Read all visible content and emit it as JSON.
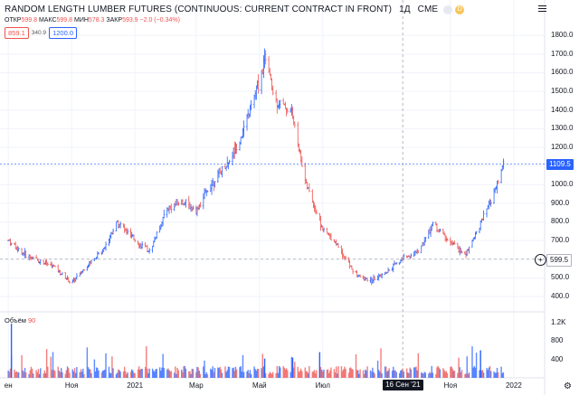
{
  "legend": {
    "title": "RANDOM LENGTH LUMBER FUTURES (CONTINUOUS: CURRENT CONTRACT IN FRONT)",
    "interval": "1Д",
    "exchange": "CME",
    "badge": "D"
  },
  "ohlc": {
    "open_label": "ОТКР",
    "open": "599.8",
    "high_label": "МАКС",
    "high": "599.8",
    "low_label": "МИН",
    "low": "578.3",
    "close_label": "ЗАКР",
    "close": "593.9",
    "change": "−2.0 (−0.34%)"
  },
  "pills": {
    "bid": "859.1",
    "spread": "340.9",
    "ask": "1200.0"
  },
  "volume": {
    "label": "Объём",
    "value": "90"
  },
  "tags": {
    "last_price": "1109.5",
    "crosshair_price": "599.5",
    "crosshair_date": "16 Сен '21"
  },
  "colors": {
    "up": "#2962ff",
    "down": "#ef5350",
    "grid": "#f0f3fa"
  },
  "icons": {
    "menu": "hamburger-icon",
    "add": "plus-circle-icon",
    "settings": "gear-icon"
  },
  "chart_data": {
    "type": "bar",
    "title": "RANDOM LENGTH LUMBER FUTURES (CONTINUOUS: CURRENT CONTRACT IN FRONT)",
    "price_axis": {
      "ticks": [
        400,
        500,
        600,
        700,
        800,
        900,
        1000,
        1100,
        1200,
        1300,
        1400,
        1500,
        1600,
        1700,
        1800
      ],
      "range": [
        390,
        1830
      ]
    },
    "volume_axis": {
      "ticks": [
        "400",
        "800",
        "1.2K"
      ],
      "range": [
        0,
        1300
      ]
    },
    "x_ticks": [
      "ен",
      "Ноя",
      "2021",
      "Мар",
      "Май",
      "Июл",
      "Ноя",
      "2022"
    ],
    "series": [
      {
        "x": [
          "2020-09-01",
          "2020-09-15",
          "2020-10-01",
          "2020-10-15",
          "2020-11-01",
          "2020-11-15",
          "2020-12-01",
          "2020-12-15",
          "2021-01-01",
          "2021-01-15",
          "2021-02-01",
          "2021-02-15",
          "2021-03-01",
          "2021-03-15",
          "2021-04-01",
          "2021-04-15",
          "2021-05-01",
          "2021-05-07",
          "2021-05-15",
          "2021-06-01",
          "2021-06-15",
          "2021-07-01",
          "2021-07-15",
          "2021-08-01",
          "2021-08-15",
          "2021-09-01",
          "2021-09-15",
          "2021-10-01",
          "2021-10-15",
          "2021-11-01",
          "2021-11-15",
          "2021-12-01",
          "2021-12-15",
          "2021-12-22"
        ],
        "y": [
          700,
          630,
          590,
          560,
          470,
          560,
          650,
          800,
          700,
          640,
          870,
          910,
          860,
          1000,
          1120,
          1280,
          1560,
          1690,
          1460,
          1390,
          1000,
          760,
          680,
          520,
          480,
          530,
          600,
          640,
          790,
          690,
          620,
          800,
          980,
          1109.5
        ]
      }
    ]
  }
}
